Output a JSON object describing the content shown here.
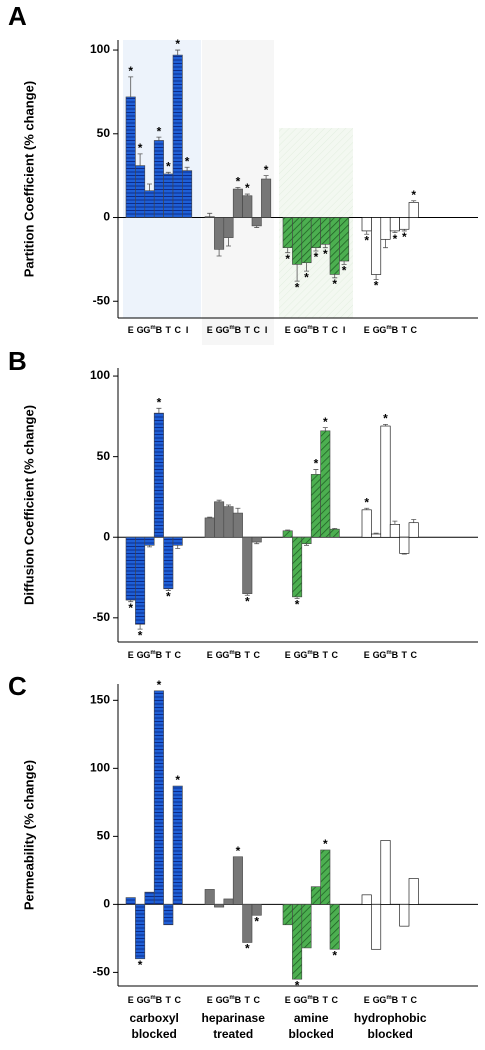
{
  "chart_data": [
    {
      "type": "bar",
      "panel": "A",
      "ylabel": "Partition Coefficient (% change)",
      "ylim": [
        -60,
        106
      ],
      "yticks": [
        -50,
        0,
        50,
        100
      ],
      "marker": "*",
      "groups": [
        {
          "color": "#1f5fd6",
          "pattern": "horizontal",
          "categories": [
            "E",
            "G",
            "Gm",
            "B",
            "T",
            "C",
            "I"
          ],
          "values": [
            72,
            31,
            16,
            46,
            26,
            97,
            28
          ],
          "errors": [
            12,
            7,
            4,
            2,
            1,
            3,
            2
          ],
          "significant": [
            true,
            true,
            false,
            true,
            true,
            true,
            true
          ]
        },
        {
          "color": "#777777",
          "pattern": "solid",
          "categories": [
            "E",
            "G",
            "Gm",
            "B",
            "T",
            "C",
            "I"
          ],
          "values": [
            0.5,
            -19,
            -12,
            17,
            13,
            -5,
            23
          ],
          "errors": [
            2,
            4,
            5,
            1,
            1,
            1,
            2
          ],
          "significant": [
            false,
            false,
            false,
            true,
            true,
            false,
            true
          ]
        },
        {
          "color": "#4caf50",
          "pattern": "diagonal",
          "categories": [
            "E",
            "G",
            "Gm",
            "B",
            "T",
            "C",
            "I"
          ],
          "values": [
            -18,
            -28,
            -27,
            -18,
            -16,
            -34,
            -26
          ],
          "errors": [
            3,
            10,
            5,
            2,
            2,
            2,
            2
          ],
          "significant": [
            true,
            true,
            true,
            true,
            true,
            true,
            true
          ]
        },
        {
          "color": "#ffffff",
          "pattern": "solid",
          "categories": [
            "E",
            "G",
            "Gm",
            "B",
            "T",
            "C"
          ],
          "values": [
            -8,
            -34,
            -13,
            -8,
            -7,
            9
          ],
          "errors": [
            2,
            3,
            5,
            1,
            1,
            1
          ],
          "significant": [
            true,
            true,
            false,
            true,
            true,
            true
          ]
        }
      ]
    },
    {
      "type": "bar",
      "panel": "B",
      "ylabel": "Diffusion Coefficient (% change)",
      "ylim": [
        -65,
        105
      ],
      "yticks": [
        -50,
        0,
        50,
        100
      ],
      "marker": "*",
      "groups": [
        {
          "color": "#1f5fd6",
          "pattern": "horizontal",
          "categories": [
            "E",
            "G",
            "Gm",
            "B",
            "T",
            "C"
          ],
          "values": [
            -39,
            -54,
            -5,
            77,
            -32,
            -5
          ],
          "errors": [
            1,
            3,
            1,
            3,
            1,
            2
          ],
          "significant": [
            true,
            true,
            false,
            true,
            true,
            false
          ]
        },
        {
          "color": "#777777",
          "pattern": "solid",
          "categories": [
            "E",
            "G",
            "Gm",
            "B",
            "T",
            "C"
          ],
          "values": [
            12,
            22,
            19,
            15,
            -35,
            -3
          ],
          "errors": [
            0.5,
            1,
            1,
            3,
            1,
            1
          ],
          "significant": [
            false,
            false,
            false,
            false,
            true,
            false
          ]
        },
        {
          "color": "#4caf50",
          "pattern": "diagonal",
          "categories": [
            "E",
            "G",
            "Gm",
            "B",
            "T",
            "C"
          ],
          "values": [
            4,
            -37,
            -4,
            39,
            66,
            5
          ],
          "errors": [
            0.5,
            1,
            1,
            3,
            2,
            0.5
          ],
          "significant": [
            false,
            true,
            false,
            true,
            true,
            false
          ]
        },
        {
          "color": "#ffffff",
          "pattern": "solid",
          "categories": [
            "E",
            "G",
            "Gm",
            "B",
            "T",
            "C"
          ],
          "values": [
            17,
            2,
            69,
            8,
            -10,
            9
          ],
          "errors": [
            1,
            0.5,
            1,
            2,
            0.5,
            2
          ],
          "significant": [
            true,
            false,
            true,
            false,
            false,
            false
          ]
        }
      ]
    },
    {
      "type": "bar",
      "panel": "C",
      "ylabel": "Permeability (% change)",
      "ylim": [
        -60,
        162
      ],
      "yticks": [
        -50,
        0,
        50,
        100,
        150
      ],
      "marker": "*",
      "groups": [
        {
          "label": [
            "carboxyl",
            "blocked"
          ],
          "color": "#1f5fd6",
          "pattern": "horizontal",
          "categories": [
            "E",
            "G",
            "Gm",
            "B",
            "T",
            "C"
          ],
          "values": [
            5,
            -40,
            9,
            157,
            -15,
            87
          ],
          "significant": [
            false,
            true,
            false,
            true,
            false,
            true
          ]
        },
        {
          "label": [
            "heparinase",
            "treated"
          ],
          "color": "#777777",
          "pattern": "solid",
          "categories": [
            "E",
            "G",
            "Gm",
            "B",
            "T",
            "C"
          ],
          "values": [
            11,
            -2,
            4,
            35,
            -28,
            -8
          ],
          "significant": [
            false,
            false,
            false,
            true,
            true,
            true
          ]
        },
        {
          "label": [
            "amine",
            "blocked"
          ],
          "color": "#4caf50",
          "pattern": "diagonal",
          "categories": [
            "E",
            "G",
            "Gm",
            "B",
            "T",
            "C"
          ],
          "values": [
            -15,
            -55,
            -32,
            13,
            40,
            -33
          ],
          "significant": [
            false,
            true,
            false,
            false,
            true,
            true
          ]
        },
        {
          "label": [
            "hydrophobic",
            "blocked"
          ],
          "color": "#ffffff",
          "pattern": "solid",
          "categories": [
            "E",
            "G",
            "Gm",
            "B",
            "T",
            "C"
          ],
          "values": [
            7,
            -33,
            47,
            0,
            -16,
            19
          ],
          "significant": [
            false,
            false,
            false,
            false,
            false,
            false
          ]
        }
      ]
    }
  ]
}
